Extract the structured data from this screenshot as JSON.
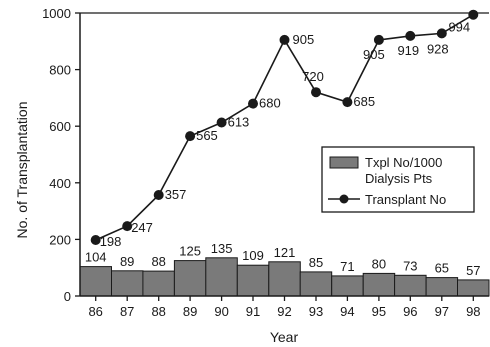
{
  "chart_data": {
    "type": "bar+line",
    "title": "",
    "xlabel": "Year",
    "ylabel": "No. of Transplantation",
    "categories": [
      "86",
      "87",
      "88",
      "89",
      "90",
      "91",
      "92",
      "93",
      "94",
      "95",
      "96",
      "97",
      "98"
    ],
    "ylim": [
      0,
      1000
    ],
    "yticks": [
      0,
      200,
      400,
      600,
      800,
      1000
    ],
    "grid": false,
    "legend_position": "center-right",
    "series": [
      {
        "name": "Txpl No/1000 Dialysis Pts",
        "kind": "bar",
        "color": "#7a7a7a",
        "values": [
          104,
          89,
          88,
          125,
          135,
          109,
          121,
          85,
          71,
          80,
          73,
          65,
          57
        ]
      },
      {
        "name": "Transplant No",
        "kind": "line",
        "color": "#1a1a1a",
        "values": [
          198,
          247,
          357,
          565,
          613,
          680,
          905,
          720,
          685,
          905,
          919,
          928,
          994
        ]
      }
    ],
    "legend": {
      "bar_label_line1": "Txpl No/1000",
      "bar_label_line2": "Dialysis Pts",
      "line_label": "Transplant No"
    }
  }
}
